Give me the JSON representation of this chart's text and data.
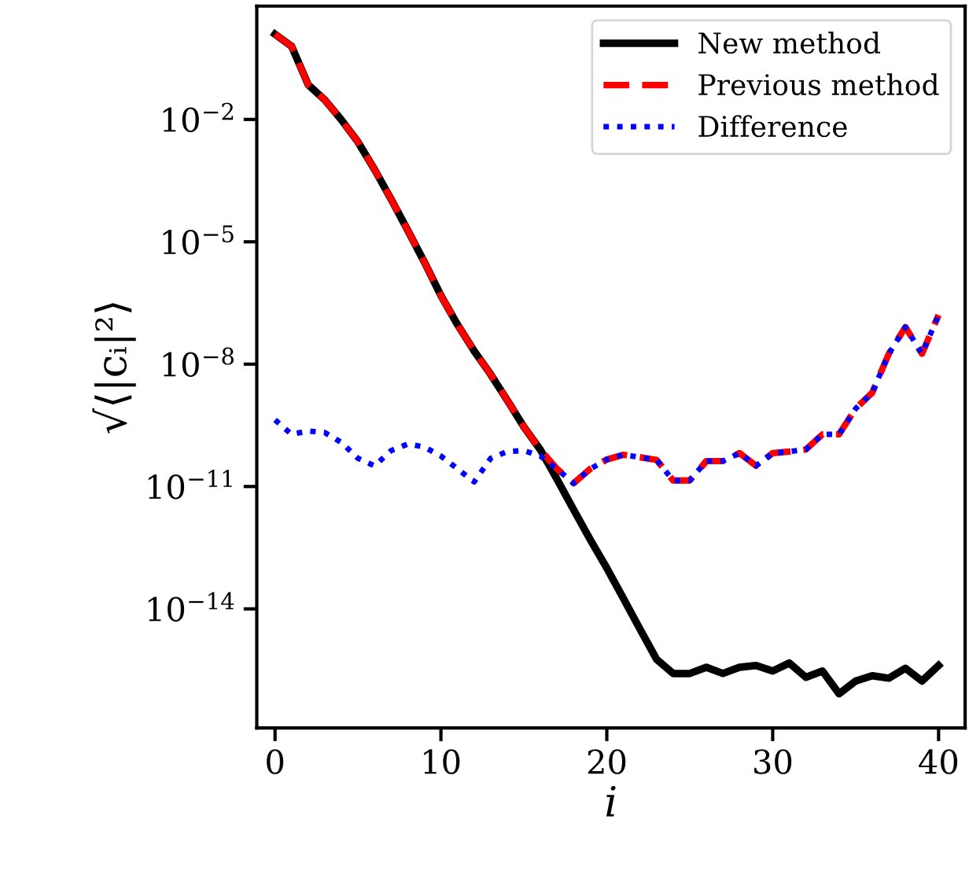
{
  "chart_data": {
    "type": "line",
    "xlabel": "i",
    "ylabel": "√⟨|cᵢ|²⟩",
    "log": "y",
    "legend": "top right",
    "grid": false,
    "x": [
      0,
      1,
      2,
      3,
      4,
      5,
      6,
      7,
      8,
      9,
      10,
      11,
      12,
      13,
      14,
      15,
      16,
      17,
      18,
      19,
      20,
      21,
      22,
      23,
      24,
      25,
      26,
      27,
      28,
      29,
      30,
      31,
      32,
      33,
      34,
      35,
      36,
      37,
      38,
      39,
      40
    ],
    "xlim": [
      -1.1,
      41.6
    ],
    "xticks": [
      0,
      10,
      20,
      30,
      40
    ],
    "ylim": [
      1.2e-17,
      6
    ],
    "yticks": [
      {
        "value": 0.01,
        "label": "10$^{−2}$"
      },
      {
        "value": 1e-05,
        "label": "10$^{−5}$"
      },
      {
        "value": 1e-08,
        "label": "10$^{−8}$"
      },
      {
        "value": 1e-11,
        "label": "10$^{−11}$"
      },
      {
        "value": 1e-14,
        "label": "10$^{−14}$"
      }
    ],
    "series": [
      {
        "name": "New method",
        "color": "#000000",
        "line_style": "solid",
        "values": [
          1.23,
          0.62,
          0.071,
          0.03,
          0.0098,
          0.0028,
          0.00059,
          0.00011,
          1.9e-05,
          3.2e-06,
          4.8e-07,
          9.3e-08,
          2.1e-08,
          5.6e-09,
          1.3e-09,
          2.9e-10,
          7.9e-11,
          1.5e-11,
          2.7e-12,
          5e-13,
          1e-13,
          1.8e-14,
          3.2e-15,
          5.8e-16,
          2.6e-16,
          2.6e-16,
          3.7e-16,
          2.6e-16,
          3.7e-16,
          4.1e-16,
          3e-16,
          4.7e-16,
          2.1e-16,
          3e-16,
          8.3e-17,
          1.7e-16,
          2.3e-16,
          2e-16,
          3.5e-16,
          1.7e-16,
          4.1e-16
        ]
      },
      {
        "name": "Previous method",
        "color": "#ff0000",
        "line_style": "dashed",
        "values": [
          1.23,
          0.62,
          0.071,
          0.03,
          0.0098,
          0.0028,
          0.00059,
          0.00011,
          1.9e-05,
          3.2e-06,
          4.8e-07,
          9.3e-08,
          2.1e-08,
          5.6e-09,
          1.3e-09,
          2.9e-10,
          7.9e-11,
          2.7e-11,
          1.2e-11,
          2.7e-11,
          4.6e-11,
          6e-11,
          5.2e-11,
          4.5e-11,
          1.4e-11,
          1.4e-11,
          4.2e-11,
          4.2e-11,
          6.6e-11,
          3.2e-11,
          6.6e-11,
          7.2e-11,
          8.1e-11,
          1.9e-10,
          1.9e-10,
          8.1e-10,
          2e-09,
          1.8e-08,
          8.1e-08,
          1.8e-08,
          1.6e-07
        ]
      },
      {
        "name": "Difference",
        "color": "#0000ff",
        "line_style": "dotted",
        "values": [
          4.3e-10,
          1.9e-10,
          2.3e-10,
          2.1e-10,
          1.2e-10,
          4.9e-11,
          3.2e-11,
          7.6e-11,
          1.1e-10,
          9.3e-11,
          5.6e-11,
          2.7e-11,
          1.3e-11,
          4.9e-11,
          7.2e-11,
          7.6e-11,
          5.6e-11,
          2.7e-11,
          1.2e-11,
          2.7e-11,
          4.6e-11,
          6e-11,
          5.2e-11,
          4.5e-11,
          1.4e-11,
          1.4e-11,
          4.2e-11,
          4.2e-11,
          6.6e-11,
          3.2e-11,
          6.6e-11,
          7.2e-11,
          8.1e-11,
          1.9e-10,
          1.9e-10,
          8.1e-10,
          2e-09,
          1.8e-08,
          8.1e-08,
          1.8e-08,
          1.6e-07
        ]
      }
    ]
  }
}
